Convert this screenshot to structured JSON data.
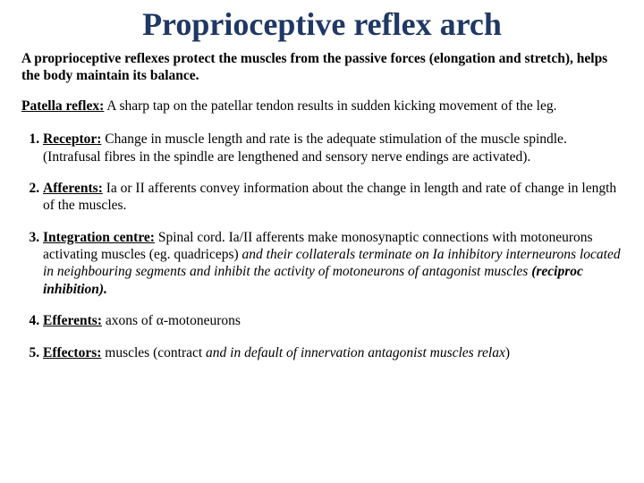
{
  "title": "Proprioceptive reflex arch",
  "intro": "A proprioceptive reflexes protect the muscles from the passive forces (elongation and stretch), helps the body maintain its balance.",
  "patella_label": "Patella reflex:",
  "patella_text": " A sharp tap on the patellar tendon results in sudden kicking movement of the leg.",
  "items": [
    {
      "label": "Receptor:",
      "text": " Change in muscle length and rate is the adequate stimulation of the muscle spindle. (Intrafusal fibres in the spindle are lengthened and sensory nerve endings are activated)."
    },
    {
      "label": "Afferents:",
      "text": " Ia or II afferents convey information about the change in length and rate of change in length of the muscles."
    },
    {
      "label": "Integration centre:",
      "text_a": " Spinal cord. Ia/II afferents make monosynaptic connections with motoneurons activating muscles (eg. quadriceps) ",
      "text_b": "and their collaterals terminate on Ia inhibitory interneurons located in neighbouring segments and inhibit the activity of motoneurons of antagonist muscles ",
      "text_c": "(reciproc inhibition)."
    },
    {
      "label": "Efferents:",
      "text": " axons of α-motoneurons"
    },
    {
      "label": "Effectors:",
      "text_a": " muscles (contract ",
      "text_b": "and in default of innervation antagonist muscles relax",
      "text_c": ")"
    }
  ],
  "colors": {
    "title": "#1f3864",
    "body": "#000000",
    "background": "#ffffff"
  },
  "fonts": {
    "title_size": 36,
    "body_size": 15.5,
    "family": "Times New Roman"
  }
}
